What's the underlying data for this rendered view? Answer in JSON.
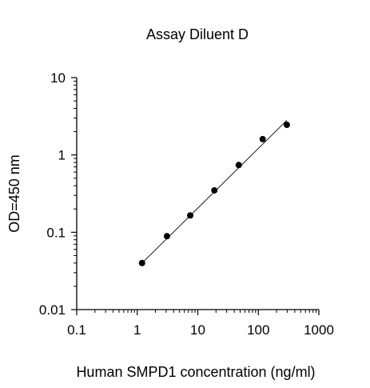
{
  "chart_data": {
    "type": "scatter",
    "title": "Assay Diluent D",
    "xlabel": "Human SMPD1 concentration (ng/ml)",
    "ylabel": "OD=450 nm",
    "x_scale": "log",
    "y_scale": "log",
    "xlim": [
      0.1,
      1000
    ],
    "ylim": [
      0.01,
      10
    ],
    "x_ticks": [
      0.1,
      1,
      10,
      100,
      1000
    ],
    "y_ticks": [
      0.01,
      0.1,
      1,
      10
    ],
    "x_tick_labels": [
      "0.1",
      "1",
      "10",
      "100",
      "1000"
    ],
    "y_tick_labels": [
      "0.01",
      "0.1",
      "1",
      "10"
    ],
    "grid": false,
    "legend": "none",
    "points": [
      {
        "x": 1.2,
        "y": 0.04
      },
      {
        "x": 3.1,
        "y": 0.089
      },
      {
        "x": 7.5,
        "y": 0.165
      },
      {
        "x": 18.8,
        "y": 0.348
      },
      {
        "x": 47.5,
        "y": 0.74
      },
      {
        "x": 118,
        "y": 1.6
      },
      {
        "x": 296,
        "y": 2.45
      }
    ],
    "fit_line": {
      "x": [
        1.2,
        296
      ],
      "y": [
        0.04,
        2.8
      ]
    },
    "colors": {
      "points": "#000000",
      "line": "#000000",
      "axes": "#000000"
    }
  }
}
